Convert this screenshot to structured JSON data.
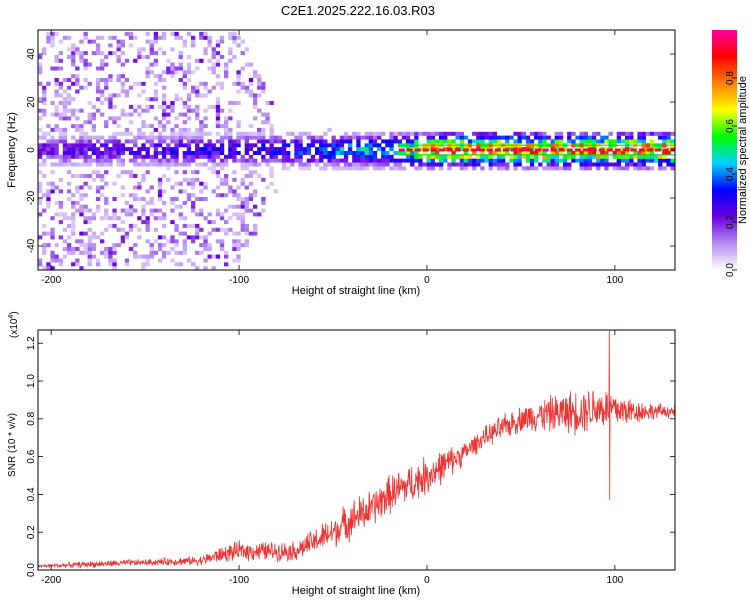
{
  "title": "C2E1.2025.222.16.03.R03",
  "colors": {
    "snr_line": "#ee3333",
    "tracking_band": "#26c426",
    "tracking_center": "#e0103a"
  },
  "chart_data": [
    {
      "type": "heatmap",
      "title": "C2E1.2025.222.16.03.R03",
      "xlabel": "Height of straight line (km)",
      "ylabel": "Frequency (Hz)",
      "xlim": [
        -207,
        132
      ],
      "ylim": [
        -50,
        50
      ],
      "xticks": [
        -200,
        -100,
        0,
        100
      ],
      "yticks": [
        -40,
        -20,
        0,
        20,
        40
      ],
      "colorbar": {
        "label": "Normalized spectral amplitude",
        "range": [
          0,
          1
        ],
        "ticks": [
          "0.0",
          "0.2",
          "0.4",
          "0.6",
          "0.8"
        ],
        "tick_values": [
          0.0,
          0.2,
          0.4,
          0.6,
          0.8
        ],
        "colormap": [
          "#ffffff",
          "#b48cf0",
          "#6a00e0",
          "#0000ff",
          "#00d2ff",
          "#00ff00",
          "#ffff00",
          "#ff8000",
          "#ff0000",
          "#ff00a0"
        ]
      },
      "tone_center_hz": 0,
      "tracking_band_hz": [
        -2,
        2
      ],
      "tracking_x_range": [
        -15,
        132
      ],
      "amplitude_profile": [
        {
          "x": -207,
          "halfwidth_hz": 50,
          "peak": 0.28
        },
        {
          "x": -150,
          "halfwidth_hz": 50,
          "peak": 0.32
        },
        {
          "x": -102,
          "halfwidth_hz": 50,
          "peak": 0.36
        },
        {
          "x": -80,
          "halfwidth_hz": 15,
          "peak": 0.4
        },
        {
          "x": -60,
          "halfwidth_hz": 10,
          "peak": 0.45
        },
        {
          "x": -40,
          "halfwidth_hz": 6,
          "peak": 0.5
        },
        {
          "x": -15,
          "halfwidth_hz": 4,
          "peak": 0.6
        },
        {
          "x": 0,
          "halfwidth_hz": 3,
          "peak": 0.95
        },
        {
          "x": 132,
          "halfwidth_hz": 3,
          "peak": 1.0
        }
      ]
    },
    {
      "type": "line",
      "xlabel": "Height of straight line (km)",
      "ylabel": "SNR (10 * v/v)",
      "y_multiplier": "(x10",
      "y_multiplier_exp": "4",
      "y_multiplier_close": ")",
      "xlim": [
        -207,
        132
      ],
      "ylim": [
        0,
        1.27
      ],
      "xticks": [
        -200,
        -100,
        0,
        100
      ],
      "yticks": [
        "0.0",
        "0.2",
        "0.4",
        "0.6",
        "0.8",
        "1.0",
        "1.2"
      ],
      "ytick_values": [
        0.0,
        0.2,
        0.4,
        0.6,
        0.8,
        1.0,
        1.2
      ],
      "series": [
        {
          "x": [
            -207,
            -180,
            -150,
            -120,
            -110,
            -100,
            -80,
            -70,
            -60,
            -50,
            -40,
            -30,
            -20,
            -10,
            0,
            10,
            20,
            30,
            40,
            50,
            60,
            70,
            80,
            90,
            100,
            110,
            120,
            132
          ],
          "values": [
            0.02,
            0.03,
            0.04,
            0.05,
            0.08,
            0.1,
            0.1,
            0.1,
            0.15,
            0.2,
            0.27,
            0.32,
            0.4,
            0.45,
            0.5,
            0.56,
            0.62,
            0.7,
            0.75,
            0.8,
            0.82,
            0.83,
            0.84,
            0.86,
            0.85,
            0.84,
            0.84,
            0.84
          ],
          "noise": [
            0.01,
            0.02,
            0.02,
            0.03,
            0.05,
            0.06,
            0.06,
            0.06,
            0.08,
            0.1,
            0.12,
            0.12,
            0.12,
            0.12,
            0.12,
            0.1,
            0.07,
            0.06,
            0.08,
            0.08,
            0.1,
            0.12,
            0.14,
            0.14,
            0.12,
            0.08,
            0.05,
            0.04
          ]
        }
      ],
      "spikes": [
        {
          "x": 97,
          "high": 1.27,
          "low": 0.37
        }
      ]
    }
  ]
}
